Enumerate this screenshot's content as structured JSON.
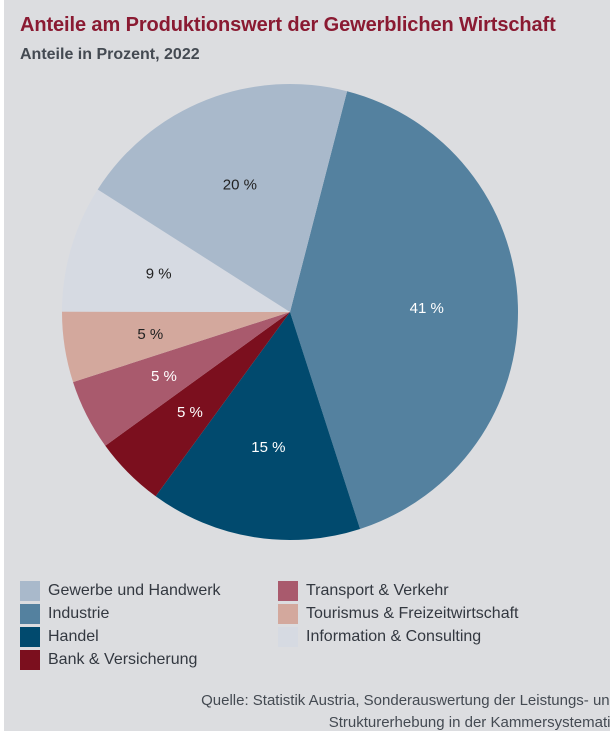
{
  "chart_data": {
    "type": "pie",
    "title": "Anteile am Produktionswert der Gewerblichen Wirtschaft",
    "subtitle": "Anteile in Prozent, 2022",
    "unit": "%",
    "slices": [
      {
        "label": "Industrie",
        "value": 41,
        "text": "41 %",
        "color": "#54819f"
      },
      {
        "label": "Handel",
        "value": 15,
        "text": "15 %",
        "color": "#014a6e"
      },
      {
        "label": "Bank & Versicherung",
        "value": 5,
        "text": "5 %",
        "color": "#7b0f1e"
      },
      {
        "label": "Transport & Verkehr",
        "value": 5,
        "text": "5 %",
        "color": "#a95a6d"
      },
      {
        "label": "Tourismus & Freizeitwirtschaft",
        "value": 5,
        "text": "5 %",
        "color": "#d3a89d"
      },
      {
        "label": "Information & Consulting",
        "value": 9,
        "text": "9 %",
        "color": "#d6dae2"
      },
      {
        "label": "Gewerbe und Handwerk",
        "value": 20,
        "text": "20 %",
        "color": "#a9b9cb"
      }
    ],
    "legend": {
      "placement": "bottom",
      "columns": [
        [
          "Gewerbe und Handwerk",
          "Industrie",
          "Handel",
          "Bank & Versicherung"
        ],
        [
          "Transport & Verkehr",
          "Tourismus & Freizeitwirtschaft",
          "Information & Consulting"
        ]
      ]
    }
  },
  "source": {
    "line1": "Quelle: Statistik Austria, Sonderauswertung der Leistungs- und",
    "line2": "Strukturerhebung in der Kammersystematik"
  }
}
